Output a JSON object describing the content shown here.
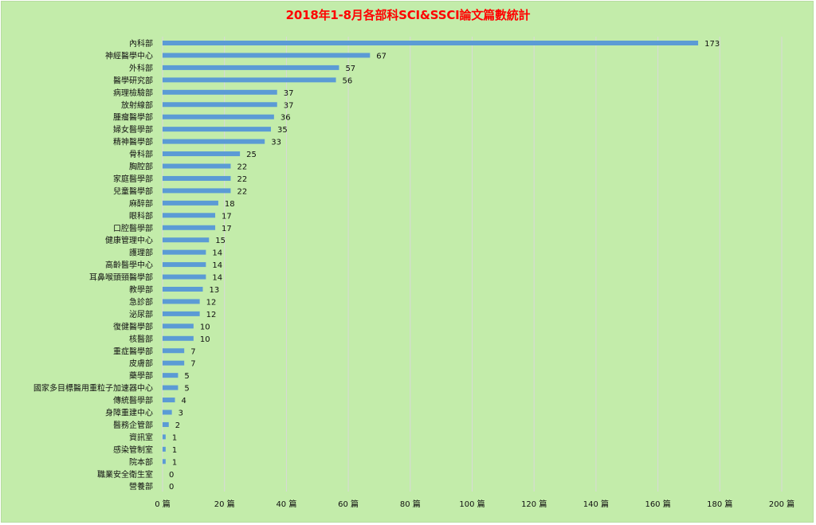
{
  "chart_data": {
    "type": "bar",
    "orientation": "horizontal",
    "title": "2018年1-8月各部科SCI&SSCI論文篇數統計",
    "xlabel": "",
    "ylabel": "",
    "xlim": [
      0,
      200
    ],
    "tick_step": 20,
    "tick_suffix": " 篇",
    "grid": true,
    "bar_color": "#5b9bd5",
    "categories": [
      "內科部",
      "神經醫學中心",
      "外科部",
      "醫學研究部",
      "病理檢驗部",
      "放射線部",
      "腫瘤醫學部",
      "婦女醫學部",
      "精神醫學部",
      "骨科部",
      "胸腔部",
      "家庭醫學部",
      "兒童醫學部",
      "麻醉部",
      "眼科部",
      "口腔醫學部",
      "健康管理中心",
      "護理部",
      "高齡醫學中心",
      "耳鼻喉頭頸醫學部",
      "教學部",
      "急診部",
      "泌尿部",
      "復健醫學部",
      "核醫部",
      "重症醫學部",
      "皮膚部",
      "藥學部",
      "國家多目標醫用重粒子加速器中心",
      "傳統醫學部",
      "身障重建中心",
      "醫務企管部",
      "資訊室",
      "感染管制室",
      "院本部",
      "職業安全衛生室",
      "營養部"
    ],
    "values": [
      173,
      67,
      57,
      56,
      37,
      37,
      36,
      35,
      33,
      25,
      22,
      22,
      22,
      18,
      17,
      17,
      15,
      14,
      14,
      14,
      13,
      12,
      12,
      10,
      10,
      7,
      7,
      5,
      5,
      4,
      3,
      2,
      1,
      1,
      1,
      0,
      0
    ]
  }
}
